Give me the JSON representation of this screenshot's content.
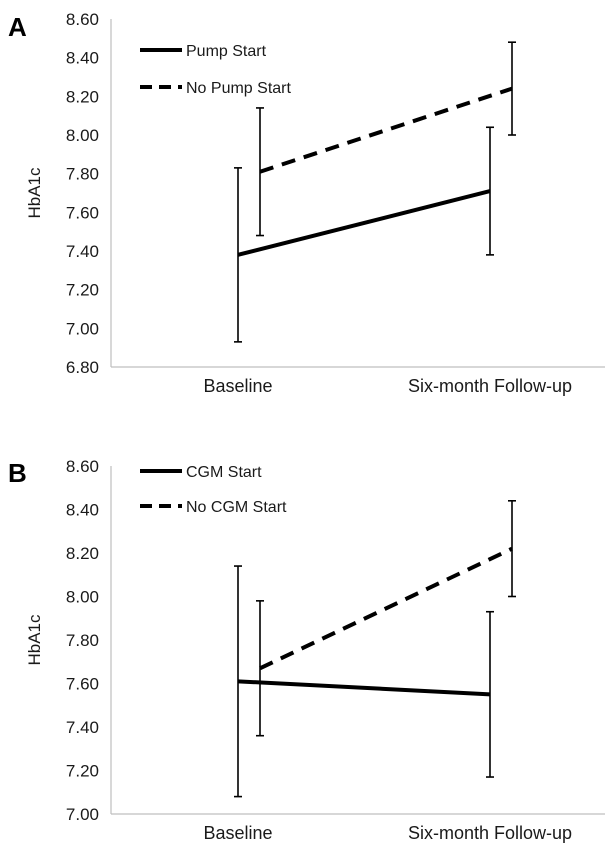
{
  "chart_data": [
    {
      "type": "line",
      "panel_label": "A",
      "ylabel": "HbA1c",
      "xlabel": "",
      "categories": [
        "Baseline",
        "Six-month Follow-up"
      ],
      "ylim": [
        6.8,
        8.6
      ],
      "yticks": [
        "6.80",
        "7.00",
        "7.20",
        "7.40",
        "7.60",
        "7.80",
        "8.00",
        "8.20",
        "8.40",
        "8.60"
      ],
      "grid": false,
      "legend_position": "top-left",
      "series": [
        {
          "name": "Pump Start",
          "style": "solid",
          "values": [
            7.38,
            7.71
          ],
          "err_low": [
            6.93,
            7.38
          ],
          "err_high": [
            7.83,
            8.04
          ]
        },
        {
          "name": "No Pump Start",
          "style": "dashed",
          "values": [
            7.81,
            8.24
          ],
          "err_low": [
            7.48,
            8.0
          ],
          "err_high": [
            8.14,
            8.48
          ]
        }
      ]
    },
    {
      "type": "line",
      "panel_label": "B",
      "ylabel": "HbA1c",
      "xlabel": "",
      "categories": [
        "Baseline",
        "Six-month Follow-up"
      ],
      "ylim": [
        7.0,
        8.6
      ],
      "yticks": [
        "7.00",
        "7.20",
        "7.40",
        "7.60",
        "7.80",
        "8.00",
        "8.20",
        "8.40",
        "8.60"
      ],
      "grid": false,
      "legend_position": "top-left",
      "series": [
        {
          "name": "CGM Start",
          "style": "solid",
          "values": [
            7.61,
            7.55
          ],
          "err_low": [
            7.08,
            7.17
          ],
          "err_high": [
            8.14,
            7.93
          ]
        },
        {
          "name": "No CGM Start",
          "style": "dashed",
          "values": [
            7.67,
            8.22
          ],
          "err_low": [
            7.36,
            8.0
          ],
          "err_high": [
            7.98,
            8.44
          ]
        }
      ]
    }
  ],
  "colors": {
    "line": "#000000",
    "axis": "#bfbfbf",
    "text": "#1a1a1a"
  }
}
